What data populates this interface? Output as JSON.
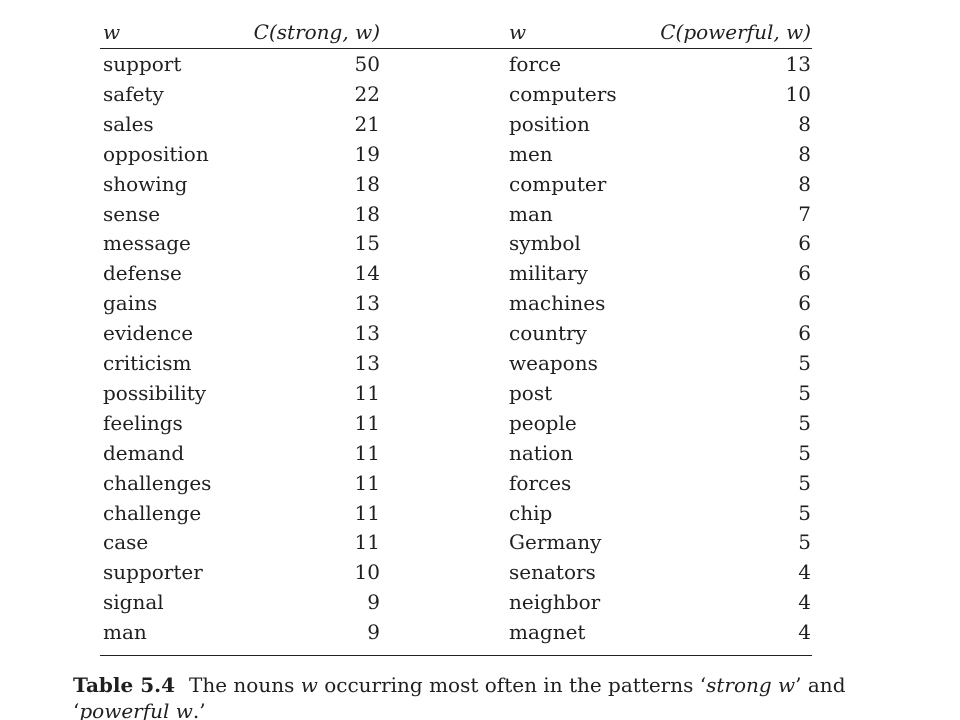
{
  "chart_data": {
    "type": "table",
    "columns": [
      "w",
      "C(strong, w)",
      "w",
      "C(powerful, w)"
    ],
    "rows": [
      [
        "support",
        50,
        "force",
        13
      ],
      [
        "safety",
        22,
        "computers",
        10
      ],
      [
        "sales",
        21,
        "position",
        8
      ],
      [
        "opposition",
        19,
        "men",
        8
      ],
      [
        "showing",
        18,
        "computer",
        8
      ],
      [
        "sense",
        18,
        "man",
        7
      ],
      [
        "message",
        15,
        "symbol",
        6
      ],
      [
        "defense",
        14,
        "military",
        6
      ],
      [
        "gains",
        13,
        "machines",
        6
      ],
      [
        "evidence",
        13,
        "country",
        6
      ],
      [
        "criticism",
        13,
        "weapons",
        5
      ],
      [
        "possibility",
        11,
        "post",
        5
      ],
      [
        "feelings",
        11,
        "people",
        5
      ],
      [
        "demand",
        11,
        "nation",
        5
      ],
      [
        "challenges",
        11,
        "forces",
        5
      ],
      [
        "challenge",
        11,
        "chip",
        5
      ],
      [
        "case",
        11,
        "Germany",
        5
      ],
      [
        "supporter",
        10,
        "senators",
        4
      ],
      [
        "signal",
        9,
        "neighbor",
        4
      ],
      [
        "man",
        9,
        "magnet",
        4
      ]
    ]
  },
  "header": {
    "w_left": "w",
    "c_left_prefix": "C",
    "c_left_args": "(strong, w)",
    "w_right": "w",
    "c_right_prefix": "C",
    "c_right_args": "(powerful, w)"
  },
  "caption": {
    "label": "Table 5.4",
    "part1": "The nouns ",
    "w": "w",
    "part2": " occurring most often in the patterns ‘",
    "strong_w": "strong w",
    "part3": "’ and ‘",
    "powerful_w": "powerful w",
    "part4": ".’"
  }
}
